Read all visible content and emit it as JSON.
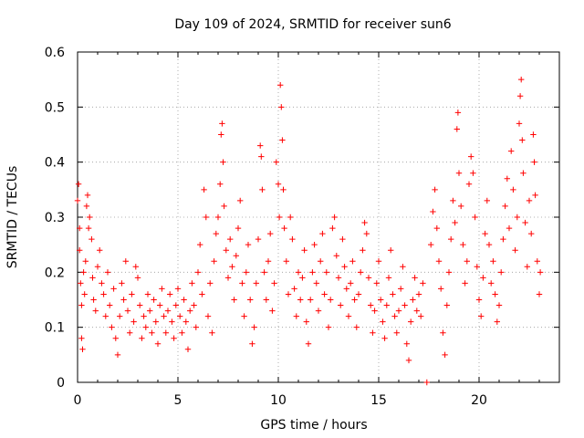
{
  "chart_data": {
    "type": "scatter",
    "title": "Day 109 of 2024, SRMTID for receiver sun6",
    "xlabel": "GPS time / hours",
    "ylabel": "SRMTID / TECUs",
    "xlim": [
      0,
      24
    ],
    "ylim": [
      0,
      0.6
    ],
    "x_ticks": [
      0,
      5,
      10,
      15,
      20
    ],
    "y_ticks": [
      0,
      0.1,
      0.2,
      0.3,
      0.4,
      0.5,
      0.6
    ],
    "x_tick_labels": [
      "0",
      "5",
      "10",
      "15",
      "20"
    ],
    "y_tick_labels": [
      "0",
      "0.1",
      "0.2",
      "0.3",
      "0.4",
      "0.5",
      "0.6"
    ],
    "grid": true,
    "marker": "plus",
    "color": "#ff0000",
    "series": [
      {
        "name": "SRMTID",
        "points": [
          [
            0.0,
            0.33
          ],
          [
            0.05,
            0.36
          ],
          [
            0.1,
            0.28
          ],
          [
            0.1,
            0.24
          ],
          [
            0.15,
            0.18
          ],
          [
            0.2,
            0.14
          ],
          [
            0.2,
            0.08
          ],
          [
            0.25,
            0.06
          ],
          [
            0.3,
            0.2
          ],
          [
            0.35,
            0.16
          ],
          [
            0.4,
            0.22
          ],
          [
            0.45,
            0.32
          ],
          [
            0.5,
            0.34
          ],
          [
            0.55,
            0.28
          ],
          [
            0.6,
            0.3
          ],
          [
            0.7,
            0.26
          ],
          [
            0.75,
            0.19
          ],
          [
            0.8,
            0.15
          ],
          [
            0.9,
            0.13
          ],
          [
            1.0,
            0.21
          ],
          [
            1.1,
            0.24
          ],
          [
            1.2,
            0.18
          ],
          [
            1.3,
            0.16
          ],
          [
            1.4,
            0.12
          ],
          [
            1.5,
            0.2
          ],
          [
            1.6,
            0.14
          ],
          [
            1.7,
            0.1
          ],
          [
            1.8,
            0.17
          ],
          [
            1.9,
            0.08
          ],
          [
            2.0,
            0.05
          ],
          [
            2.1,
            0.12
          ],
          [
            2.2,
            0.18
          ],
          [
            2.3,
            0.15
          ],
          [
            2.4,
            0.22
          ],
          [
            2.5,
            0.13
          ],
          [
            2.6,
            0.09
          ],
          [
            2.7,
            0.16
          ],
          [
            2.8,
            0.11
          ],
          [
            2.9,
            0.21
          ],
          [
            3.0,
            0.19
          ],
          [
            3.1,
            0.14
          ],
          [
            3.2,
            0.08
          ],
          [
            3.3,
            0.12
          ],
          [
            3.4,
            0.1
          ],
          [
            3.5,
            0.16
          ],
          [
            3.6,
            0.13
          ],
          [
            3.7,
            0.09
          ],
          [
            3.8,
            0.15
          ],
          [
            3.9,
            0.11
          ],
          [
            4.0,
            0.07
          ],
          [
            4.1,
            0.14
          ],
          [
            4.2,
            0.17
          ],
          [
            4.3,
            0.12
          ],
          [
            4.4,
            0.09
          ],
          [
            4.5,
            0.13
          ],
          [
            4.6,
            0.16
          ],
          [
            4.7,
            0.11
          ],
          [
            4.8,
            0.08
          ],
          [
            4.9,
            0.14
          ],
          [
            5.0,
            0.17
          ],
          [
            5.1,
            0.12
          ],
          [
            5.2,
            0.09
          ],
          [
            5.3,
            0.15
          ],
          [
            5.4,
            0.11
          ],
          [
            5.5,
            0.06
          ],
          [
            5.6,
            0.13
          ],
          [
            5.7,
            0.18
          ],
          [
            5.8,
            0.14
          ],
          [
            5.9,
            0.1
          ],
          [
            6.0,
            0.2
          ],
          [
            6.1,
            0.25
          ],
          [
            6.2,
            0.16
          ],
          [
            6.3,
            0.35
          ],
          [
            6.4,
            0.3
          ],
          [
            6.5,
            0.12
          ],
          [
            6.6,
            0.18
          ],
          [
            6.7,
            0.09
          ],
          [
            6.8,
            0.22
          ],
          [
            6.9,
            0.27
          ],
          [
            7.0,
            0.3
          ],
          [
            7.1,
            0.36
          ],
          [
            7.15,
            0.45
          ],
          [
            7.2,
            0.47
          ],
          [
            7.25,
            0.4
          ],
          [
            7.3,
            0.32
          ],
          [
            7.4,
            0.24
          ],
          [
            7.5,
            0.19
          ],
          [
            7.6,
            0.26
          ],
          [
            7.7,
            0.21
          ],
          [
            7.8,
            0.15
          ],
          [
            7.9,
            0.23
          ],
          [
            8.0,
            0.28
          ],
          [
            8.1,
            0.33
          ],
          [
            8.2,
            0.18
          ],
          [
            8.3,
            0.12
          ],
          [
            8.4,
            0.2
          ],
          [
            8.5,
            0.25
          ],
          [
            8.6,
            0.15
          ],
          [
            8.7,
            0.07
          ],
          [
            8.8,
            0.1
          ],
          [
            8.9,
            0.18
          ],
          [
            9.0,
            0.26
          ],
          [
            9.1,
            0.43
          ],
          [
            9.15,
            0.41
          ],
          [
            9.2,
            0.35
          ],
          [
            9.3,
            0.2
          ],
          [
            9.4,
            0.15
          ],
          [
            9.5,
            0.22
          ],
          [
            9.6,
            0.27
          ],
          [
            9.7,
            0.13
          ],
          [
            9.8,
            0.18
          ],
          [
            9.9,
            0.4
          ],
          [
            10.0,
            0.36
          ],
          [
            10.05,
            0.3
          ],
          [
            10.1,
            0.54
          ],
          [
            10.15,
            0.5
          ],
          [
            10.2,
            0.44
          ],
          [
            10.25,
            0.35
          ],
          [
            10.3,
            0.28
          ],
          [
            10.4,
            0.22
          ],
          [
            10.5,
            0.16
          ],
          [
            10.6,
            0.3
          ],
          [
            10.7,
            0.26
          ],
          [
            10.8,
            0.17
          ],
          [
            10.9,
            0.12
          ],
          [
            11.0,
            0.2
          ],
          [
            11.1,
            0.15
          ],
          [
            11.2,
            0.19
          ],
          [
            11.3,
            0.24
          ],
          [
            11.4,
            0.11
          ],
          [
            11.5,
            0.07
          ],
          [
            11.6,
            0.15
          ],
          [
            11.7,
            0.2
          ],
          [
            11.8,
            0.25
          ],
          [
            11.9,
            0.18
          ],
          [
            12.0,
            0.13
          ],
          [
            12.1,
            0.22
          ],
          [
            12.2,
            0.27
          ],
          [
            12.3,
            0.16
          ],
          [
            12.4,
            0.2
          ],
          [
            12.5,
            0.1
          ],
          [
            12.6,
            0.15
          ],
          [
            12.7,
            0.28
          ],
          [
            12.8,
            0.3
          ],
          [
            12.9,
            0.23
          ],
          [
            13.0,
            0.19
          ],
          [
            13.1,
            0.14
          ],
          [
            13.2,
            0.26
          ],
          [
            13.3,
            0.21
          ],
          [
            13.4,
            0.17
          ],
          [
            13.5,
            0.12
          ],
          [
            13.6,
            0.18
          ],
          [
            13.7,
            0.22
          ],
          [
            13.8,
            0.15
          ],
          [
            13.9,
            0.1
          ],
          [
            14.0,
            0.16
          ],
          [
            14.1,
            0.2
          ],
          [
            14.2,
            0.24
          ],
          [
            14.3,
            0.29
          ],
          [
            14.4,
            0.27
          ],
          [
            14.5,
            0.19
          ],
          [
            14.6,
            0.14
          ],
          [
            14.7,
            0.09
          ],
          [
            14.8,
            0.13
          ],
          [
            14.9,
            0.18
          ],
          [
            15.0,
            0.22
          ],
          [
            15.1,
            0.15
          ],
          [
            15.2,
            0.11
          ],
          [
            15.3,
            0.08
          ],
          [
            15.4,
            0.14
          ],
          [
            15.5,
            0.19
          ],
          [
            15.6,
            0.24
          ],
          [
            15.7,
            0.16
          ],
          [
            15.8,
            0.12
          ],
          [
            15.9,
            0.09
          ],
          [
            16.0,
            0.13
          ],
          [
            16.1,
            0.17
          ],
          [
            16.2,
            0.21
          ],
          [
            16.3,
            0.14
          ],
          [
            16.4,
            0.07
          ],
          [
            16.5,
            0.04
          ],
          [
            16.6,
            0.11
          ],
          [
            16.7,
            0.15
          ],
          [
            16.8,
            0.19
          ],
          [
            16.9,
            0.13
          ],
          [
            17.0,
            0.16
          ],
          [
            17.1,
            0.12
          ],
          [
            17.2,
            0.18
          ],
          [
            17.4,
            0.0
          ],
          [
            17.6,
            0.25
          ],
          [
            17.7,
            0.31
          ],
          [
            17.8,
            0.35
          ],
          [
            17.9,
            0.28
          ],
          [
            18.0,
            0.22
          ],
          [
            18.1,
            0.17
          ],
          [
            18.2,
            0.09
          ],
          [
            18.3,
            0.05
          ],
          [
            18.4,
            0.14
          ],
          [
            18.5,
            0.2
          ],
          [
            18.6,
            0.26
          ],
          [
            18.7,
            0.33
          ],
          [
            18.8,
            0.29
          ],
          [
            18.9,
            0.46
          ],
          [
            18.95,
            0.49
          ],
          [
            19.0,
            0.38
          ],
          [
            19.1,
            0.32
          ],
          [
            19.2,
            0.25
          ],
          [
            19.3,
            0.18
          ],
          [
            19.4,
            0.22
          ],
          [
            19.5,
            0.36
          ],
          [
            19.6,
            0.41
          ],
          [
            19.7,
            0.38
          ],
          [
            19.8,
            0.3
          ],
          [
            19.9,
            0.21
          ],
          [
            20.0,
            0.15
          ],
          [
            20.1,
            0.12
          ],
          [
            20.2,
            0.19
          ],
          [
            20.3,
            0.27
          ],
          [
            20.4,
            0.33
          ],
          [
            20.5,
            0.25
          ],
          [
            20.6,
            0.18
          ],
          [
            20.7,
            0.22
          ],
          [
            20.8,
            0.16
          ],
          [
            20.9,
            0.11
          ],
          [
            21.0,
            0.14
          ],
          [
            21.1,
            0.2
          ],
          [
            21.2,
            0.26
          ],
          [
            21.3,
            0.32
          ],
          [
            21.4,
            0.37
          ],
          [
            21.5,
            0.28
          ],
          [
            21.6,
            0.42
          ],
          [
            21.7,
            0.35
          ],
          [
            21.8,
            0.24
          ],
          [
            21.9,
            0.3
          ],
          [
            22.0,
            0.47
          ],
          [
            22.05,
            0.52
          ],
          [
            22.1,
            0.55
          ],
          [
            22.15,
            0.44
          ],
          [
            22.2,
            0.38
          ],
          [
            22.3,
            0.29
          ],
          [
            22.4,
            0.21
          ],
          [
            22.5,
            0.33
          ],
          [
            22.6,
            0.27
          ],
          [
            22.7,
            0.45
          ],
          [
            22.75,
            0.4
          ],
          [
            22.8,
            0.34
          ],
          [
            22.9,
            0.22
          ],
          [
            23.0,
            0.16
          ],
          [
            23.05,
            0.2
          ]
        ]
      }
    ]
  }
}
